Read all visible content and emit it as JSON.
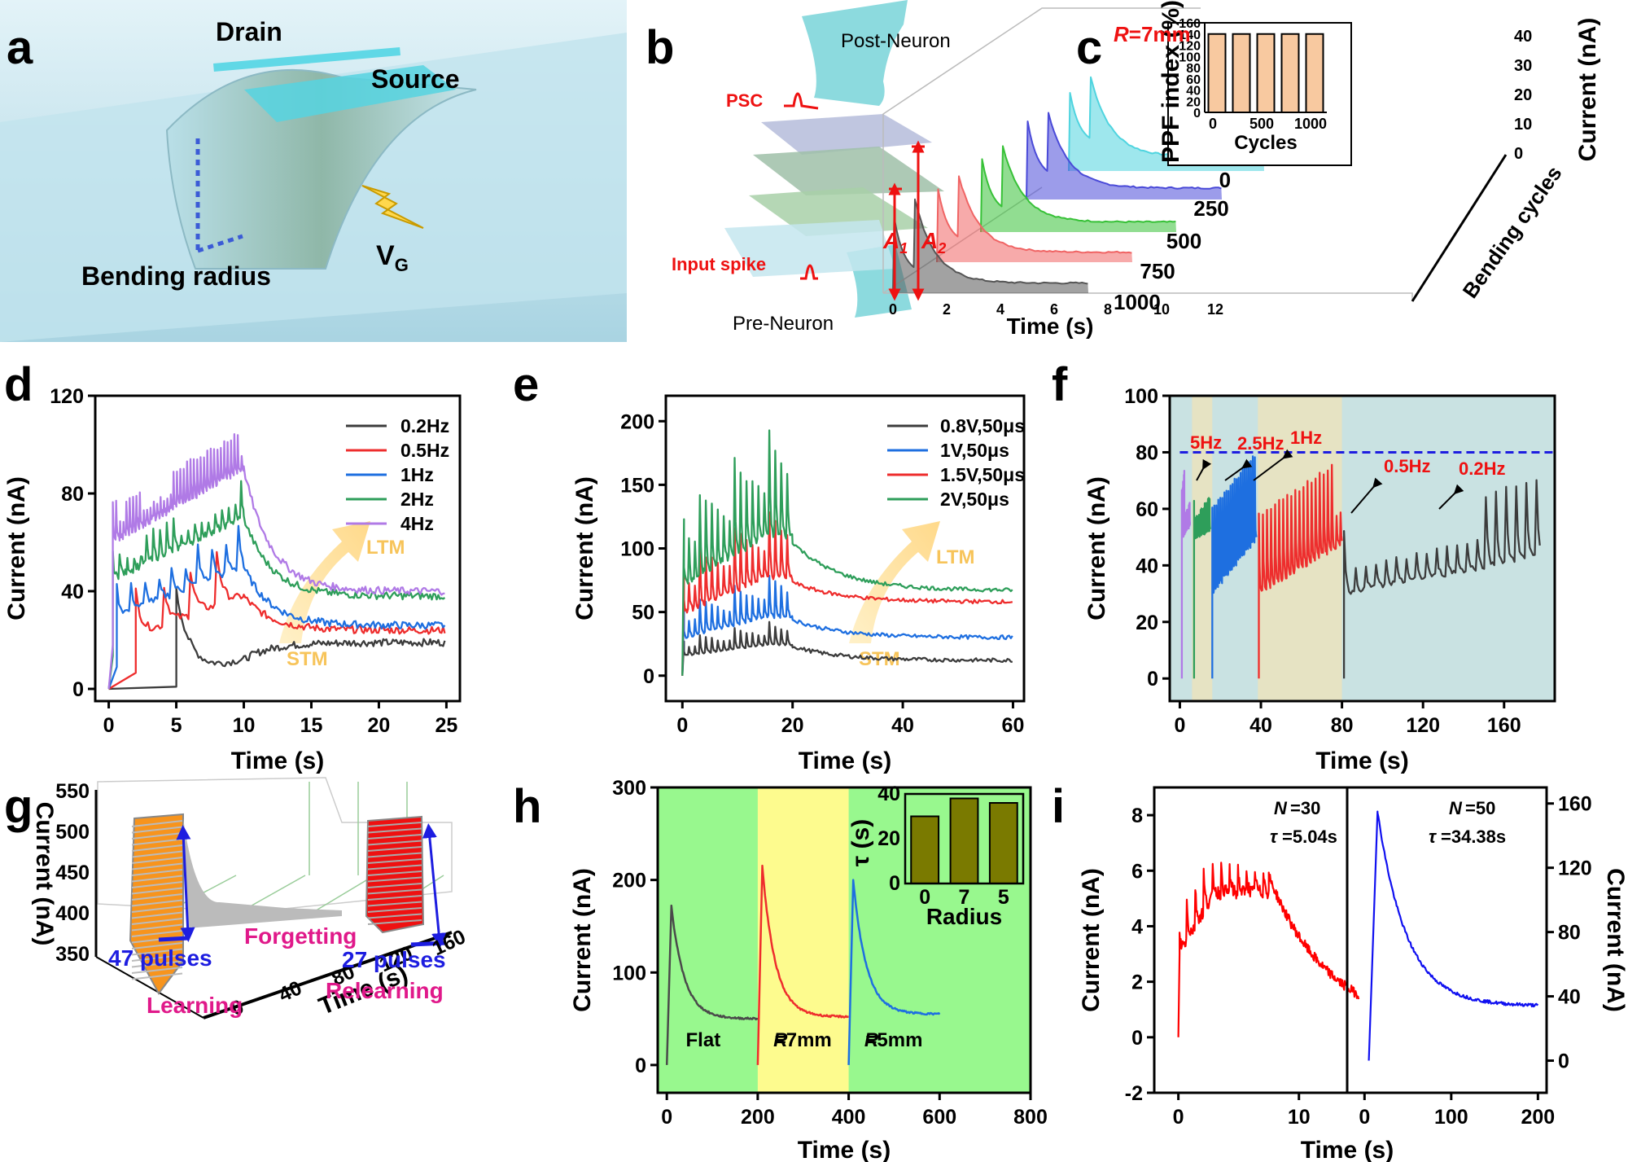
{
  "panels": {
    "a": {
      "letter": "a",
      "drain": "Drain",
      "source": "Source",
      "bending": "Bending radius",
      "vg": "V",
      "vg_sub": "G"
    },
    "b": {
      "letter": "b",
      "post": "Post-Neuron",
      "pre": "Pre-Neuron",
      "psc": "PSC",
      "input": "Input spike"
    },
    "c": {
      "letter": "c",
      "r_italic": "R",
      "r_value": "=7mm",
      "a1": "A",
      "a1_sub": "1",
      "a2": "A",
      "a2_sub": "2"
    },
    "d": {
      "letter": "d"
    },
    "e": {
      "letter": "e"
    },
    "f": {
      "letter": "f"
    },
    "g": {
      "letter": "g"
    },
    "h": {
      "letter": "h"
    },
    "i": {
      "letter": "i"
    }
  },
  "colors": {
    "black": "#3c3c3c",
    "red": "#ee2d2d",
    "blue": "#1e6fe0",
    "green": "#2e9e5a",
    "purple": "#b07ae6",
    "orange": "#f7941d",
    "dkred": "#e11111",
    "olive": "#7a7a00",
    "gray": "#aaaaaa"
  },
  "chart_data": [
    {
      "id": "c",
      "type": "line",
      "title": "",
      "xlabel": "Time (s)",
      "ylabel": "Current (nA)",
      "zlabel": "Bending cycles",
      "xlim": [
        0,
        12
      ],
      "ylim": [
        0,
        40
      ],
      "xticks": [
        "0",
        "2",
        "4",
        "6",
        "8",
        "10",
        "12"
      ],
      "yticks": [
        "0",
        "10",
        "20",
        "30",
        "40"
      ],
      "zticks": [
        "0",
        "250",
        "500",
        "750",
        "1000"
      ],
      "series": [
        {
          "name": "0",
          "color": "#4fd4df",
          "peak1": 30,
          "peak2": 36,
          "base": 10
        },
        {
          "name": "250",
          "color": "#4a4ad8",
          "peak1": 30,
          "peak2": 33,
          "base": 8
        },
        {
          "name": "500",
          "color": "#37c137",
          "peak1": 28,
          "peak2": 33,
          "base": 7
        },
        {
          "name": "750",
          "color": "#f06464",
          "peak1": 28,
          "peak2": 33,
          "base": 7
        },
        {
          "name": "1000",
          "color": "#555555",
          "peak1": 29,
          "peak2": 36,
          "base": 7
        }
      ],
      "inset": {
        "type": "bar",
        "xlabel": "Cycles",
        "ylabel": "PPF index (%)",
        "xticks": [
          "0",
          "500",
          "1000"
        ],
        "yticks": [
          "0",
          "20",
          "40",
          "60",
          "80",
          "100",
          "120",
          "140",
          "160"
        ],
        "ylim": [
          0,
          160
        ],
        "values": [
          140,
          140,
          140,
          140,
          140
        ]
      }
    },
    {
      "id": "d",
      "type": "line",
      "xlabel": "Time (s)",
      "ylabel": "Current (nA)",
      "xlim": [
        -1,
        26
      ],
      "ylim": [
        -5,
        120
      ],
      "xticks": [
        "0",
        "5",
        "10",
        "15",
        "20",
        "25"
      ],
      "yticks": [
        "0",
        "40",
        "80",
        "120"
      ],
      "legend": [
        "0.2Hz",
        "0.5Hz",
        "1Hz",
        "2Hz",
        "4Hz"
      ],
      "annotations": [
        "LTM",
        "STM"
      ],
      "series": [
        {
          "name": "0.2Hz",
          "freq": 0.2,
          "peak_start": 40,
          "peak_end": 65,
          "base_start": 3,
          "base_end": 12,
          "final": 19
        },
        {
          "name": "0.5Hz",
          "freq": 0.5,
          "peak_start": 40,
          "peak_end": 62,
          "base_start": 22,
          "base_end": 38,
          "final": 24
        },
        {
          "name": "1Hz",
          "freq": 1,
          "peak_start": 42,
          "peak_end": 68,
          "base_start": 30,
          "base_end": 50,
          "final": 26
        },
        {
          "name": "2Hz",
          "freq": 2,
          "peak_start": 55,
          "peak_end": 85,
          "base_start": 45,
          "base_end": 70,
          "final": 38
        },
        {
          "name": "4Hz",
          "freq": 4,
          "peak_start": 75,
          "peak_end": 105,
          "base_start": 60,
          "base_end": 90,
          "final": 40
        }
      ]
    },
    {
      "id": "e",
      "type": "line",
      "xlabel": "Time (s)",
      "ylabel": "Current (nA)",
      "xlim": [
        -3,
        62
      ],
      "ylim": [
        -20,
        220
      ],
      "xticks": [
        "0",
        "20",
        "40",
        "60"
      ],
      "yticks": [
        "0",
        "50",
        "100",
        "150",
        "200"
      ],
      "legend": [
        "0.8V,50μs",
        "1V,50μs",
        "1.5V,50μs",
        "2V,50μs"
      ],
      "annotations": [
        "LTM",
        "STM"
      ],
      "series": [
        {
          "name": "0.8V,50μs",
          "peak": 45,
          "base": 22,
          "final": 12
        },
        {
          "name": "1V,50μs",
          "peak": 85,
          "base": 42,
          "final": 30
        },
        {
          "name": "1.5V,50μs",
          "peak": 140,
          "base": 70,
          "final": 58
        },
        {
          "name": "2V,50μs",
          "peak": 205,
          "base": 100,
          "final": 67
        }
      ]
    },
    {
      "id": "f",
      "type": "line",
      "xlabel": "Time (s)",
      "ylabel": "Current (nA)",
      "xlim": [
        -5,
        185
      ],
      "ylim": [
        -8,
        100
      ],
      "xticks": [
        "0",
        "40",
        "80",
        "120",
        "160"
      ],
      "yticks": [
        "0",
        "20",
        "40",
        "60",
        "80",
        "100"
      ],
      "threshold": 80,
      "annotations": [
        "5Hz",
        "2.5Hz",
        "1Hz",
        "0.5Hz",
        "0.2Hz"
      ],
      "series": [
        {
          "name": "5Hz",
          "x0": 1,
          "x1": 5,
          "peak": 88
        },
        {
          "name": "2.5Hz",
          "x0": 7,
          "x1": 15,
          "peak": 85
        },
        {
          "name": "1Hz",
          "x0": 16,
          "x1": 38,
          "peak": 80
        },
        {
          "name": "0.5Hz",
          "x0": 39,
          "x1": 80,
          "peak": 77
        },
        {
          "name": "0.2Hz",
          "x0": 81,
          "x1": 178,
          "peak": 70
        }
      ]
    },
    {
      "id": "g",
      "type": "line",
      "xlabel": "Time (s)",
      "ylabel": "Current (nA)",
      "yticks": [
        "350",
        "400",
        "450",
        "500",
        "550"
      ],
      "xticks": [
        "0",
        "40",
        "80",
        "120",
        "160"
      ],
      "labels": [
        "47 pulses",
        "Forgetting",
        "Learning",
        "27 pulses",
        "Relearning"
      ]
    },
    {
      "id": "h",
      "type": "line",
      "xlabel": "Time (s)",
      "ylabel": "Current (nA)",
      "xlim": [
        -20,
        800
      ],
      "ylim": [
        -30,
        300
      ],
      "xticks": [
        "0",
        "200",
        "400",
        "600",
        "800"
      ],
      "yticks": [
        "0",
        "100",
        "200",
        "300"
      ],
      "regions": [
        "Flat",
        "=7mm",
        "=5mm"
      ],
      "region_italic": "R",
      "series": [
        {
          "name": "Flat",
          "peak": 172,
          "final": 50
        },
        {
          "name": "R=7mm",
          "peak": 215,
          "final": 52
        },
        {
          "name": "R=5mm",
          "peak": 200,
          "final": 55
        }
      ],
      "inset": {
        "type": "bar",
        "xlabel": "Radius",
        "ylabel": "τ (s)",
        "categories": [
          "0",
          "7",
          "5"
        ],
        "values": [
          30,
          38,
          36
        ],
        "ylim": [
          0,
          40
        ],
        "yticks": [
          "0",
          "20",
          "40"
        ]
      }
    },
    {
      "id": "i",
      "type": "line",
      "xlabel": "Time (s)",
      "ylabel": "Current (nA)",
      "left": {
        "xlim": [
          -2,
          14
        ],
        "ylim": [
          -2,
          9
        ],
        "xticks": [
          "0",
          "10"
        ],
        "yticks": [
          "-2",
          "0",
          "2",
          "4",
          "6",
          "8"
        ],
        "n_label": "=30",
        "tau_label": "=5.04s",
        "peak": 6,
        "final": 0.3
      },
      "right": {
        "xlim": [
          -20,
          210
        ],
        "ylim": [
          -20,
          170
        ],
        "xticks": [
          "0",
          "100",
          "200"
        ],
        "yticks": [
          "0",
          "40",
          "80",
          "120",
          "160"
        ],
        "n_label": "=50",
        "tau_label": "=34.38s",
        "peak": 155,
        "final": 34
      },
      "n_italic": "N",
      "tau_sym": "τ"
    }
  ]
}
